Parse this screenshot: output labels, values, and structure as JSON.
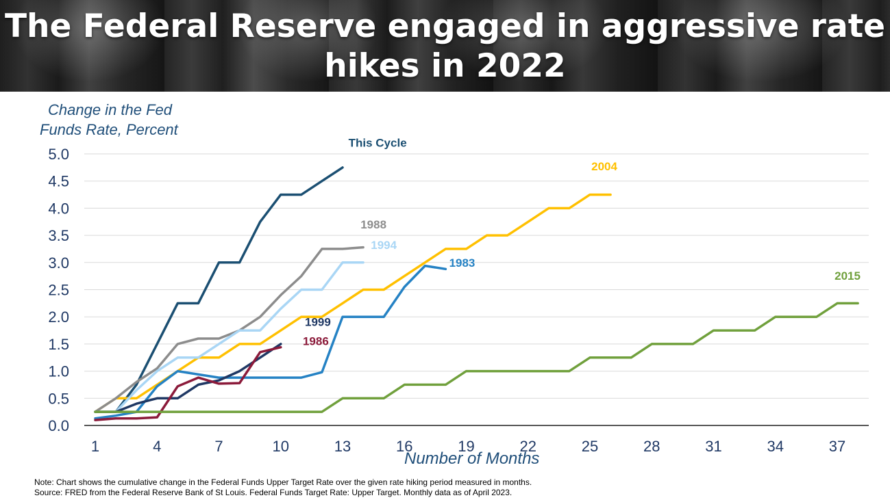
{
  "title": "The Federal Reserve engaged in aggressive rate hikes in 2022",
  "notes": {
    "note": "Note: Chart shows the cumulative change in the Federal Funds Upper Target Rate over the given rate hiking period measured in months.",
    "source": "Source: FRED from the Federal Reserve Bank of St Louis. Federal Funds Target Rate: Upper Target. Monthly data as of April 2023."
  },
  "colors": {
    "this_cycle": "#1b4f72",
    "y2004": "#ffc000",
    "y1988": "#8c8c8c",
    "y1994": "#a9d6f5",
    "y1983": "#2582c4",
    "y1999": "#1f3864",
    "y1986": "#8b1a3a",
    "y2015": "#70a03c",
    "axis_text": "#1f3864",
    "grid": "#d9d9d9"
  },
  "chart_data": {
    "type": "line",
    "ylabel_lines": [
      "Change in the Fed",
      "Funds Rate, Percent"
    ],
    "xlabel": "Number of Months",
    "ylim": [
      0,
      5
    ],
    "xlim": [
      1,
      38
    ],
    "yticks": [
      "0.0",
      "0.5",
      "1.0",
      "1.5",
      "2.0",
      "2.5",
      "3.0",
      "3.5",
      "4.0",
      "4.5",
      "5.0"
    ],
    "xticks": [
      "1",
      "4",
      "7",
      "10",
      "13",
      "16",
      "19",
      "22",
      "25",
      "28",
      "31",
      "34",
      "37"
    ],
    "grid": "horizontal",
    "series": [
      {
        "name": "This Cycle",
        "color": "#1b4f72",
        "x": [
          1,
          2,
          3,
          4,
          5,
          6,
          7,
          8,
          9,
          10,
          11,
          12,
          13
        ],
        "y": [
          0.25,
          0.25,
          0.75,
          1.5,
          2.25,
          2.25,
          3.0,
          3.0,
          3.75,
          4.25,
          4.25,
          4.5,
          4.75
        ]
      },
      {
        "name": "2004",
        "color": "#ffc000",
        "x": [
          1,
          2,
          3,
          4,
          5,
          6,
          7,
          8,
          9,
          10,
          11,
          12,
          13,
          14,
          15,
          16,
          17,
          18,
          19,
          20,
          21,
          22,
          23,
          24,
          25,
          26
        ],
        "y": [
          0.25,
          0.5,
          0.5,
          0.75,
          1.0,
          1.25,
          1.25,
          1.5,
          1.5,
          1.75,
          2.0,
          2.0,
          2.25,
          2.5,
          2.5,
          2.75,
          3.0,
          3.25,
          3.25,
          3.5,
          3.5,
          3.75,
          4.0,
          4.0,
          4.25,
          4.25
        ]
      },
      {
        "name": "1988",
        "color": "#8c8c8c",
        "x": [
          1,
          2,
          3,
          4,
          5,
          6,
          7,
          8,
          9,
          10,
          11,
          12,
          13,
          14
        ],
        "y": [
          0.25,
          0.5,
          0.8,
          1.05,
          1.5,
          1.6,
          1.6,
          1.75,
          2.0,
          2.4,
          2.75,
          3.25,
          3.25,
          3.28
        ]
      },
      {
        "name": "1994",
        "color": "#a9d6f5",
        "x": [
          1,
          2,
          3,
          4,
          5,
          6,
          7,
          8,
          9,
          10,
          11,
          12,
          13,
          14
        ],
        "y": [
          0.25,
          0.25,
          0.65,
          1.0,
          1.25,
          1.25,
          1.5,
          1.75,
          1.75,
          2.15,
          2.5,
          2.5,
          3.0,
          3.0
        ]
      },
      {
        "name": "1983",
        "color": "#2582c4",
        "x": [
          1,
          2,
          3,
          4,
          5,
          6,
          7,
          8,
          9,
          10,
          11,
          12,
          13,
          14,
          15,
          16,
          17,
          18
        ],
        "y": [
          0.13,
          0.18,
          0.25,
          0.72,
          1.0,
          0.94,
          0.88,
          0.88,
          0.88,
          0.88,
          0.88,
          0.98,
          2.0,
          2.0,
          2.0,
          2.55,
          2.94,
          2.88
        ]
      },
      {
        "name": "1999",
        "color": "#1f3864",
        "x": [
          1,
          2,
          3,
          4,
          5,
          6,
          7,
          8,
          9,
          10
        ],
        "y": [
          0.25,
          0.25,
          0.4,
          0.5,
          0.5,
          0.75,
          0.83,
          1.0,
          1.25,
          1.5
        ]
      },
      {
        "name": "1986",
        "color": "#8b1a3a",
        "x": [
          1,
          2,
          3,
          4,
          5,
          6,
          7,
          8,
          9,
          10
        ],
        "y": [
          0.1,
          0.13,
          0.13,
          0.15,
          0.72,
          0.88,
          0.77,
          0.78,
          1.35,
          1.44
        ]
      },
      {
        "name": "2015",
        "color": "#70a03c",
        "x": [
          1,
          2,
          3,
          4,
          5,
          6,
          7,
          8,
          9,
          10,
          11,
          12,
          13,
          14,
          15,
          16,
          17,
          18,
          19,
          20,
          21,
          22,
          23,
          24,
          25,
          26,
          27,
          28,
          29,
          30,
          31,
          32,
          33,
          34,
          35,
          36,
          37,
          38
        ],
        "y": [
          0.25,
          0.25,
          0.25,
          0.25,
          0.25,
          0.25,
          0.25,
          0.25,
          0.25,
          0.25,
          0.25,
          0.25,
          0.5,
          0.5,
          0.5,
          0.75,
          0.75,
          0.75,
          1.0,
          1.0,
          1.0,
          1.0,
          1.0,
          1.0,
          1.25,
          1.25,
          1.25,
          1.5,
          1.5,
          1.5,
          1.75,
          1.75,
          1.75,
          2.0,
          2.0,
          2.0,
          2.25,
          2.25
        ]
      }
    ],
    "labels": [
      {
        "text": "This Cycle",
        "series": 0,
        "anchor_x": 14.7,
        "anchor_y": 5.13
      },
      {
        "text": "2004",
        "series": 1,
        "anchor_x": 25.7,
        "anchor_y": 4.7
      },
      {
        "text": "1988",
        "series": 2,
        "anchor_x": 14.5,
        "anchor_y": 3.63
      },
      {
        "text": "1994",
        "series": 3,
        "anchor_x": 15.0,
        "anchor_y": 3.25
      },
      {
        "text": "1983",
        "series": 4,
        "anchor_x": 18.8,
        "anchor_y": 2.92
      },
      {
        "text": "1999",
        "series": 5,
        "anchor_x": 11.8,
        "anchor_y": 1.83
      },
      {
        "text": "1986",
        "series": 6,
        "anchor_x": 11.7,
        "anchor_y": 1.48
      },
      {
        "text": "2015",
        "series": 7,
        "anchor_x": 37.5,
        "anchor_y": 2.68
      }
    ]
  }
}
